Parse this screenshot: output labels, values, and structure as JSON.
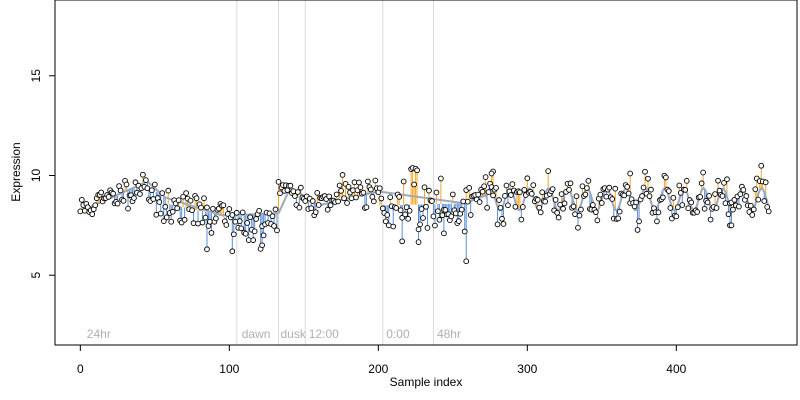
{
  "chart_data": {
    "type": "scatter",
    "title": "",
    "xlabel": "Sample index",
    "ylabel": "Expression",
    "xlim": [
      -17,
      481
    ],
    "ylim": [
      1.5,
      18.8
    ],
    "xticks": [
      0,
      100,
      200,
      300,
      400
    ],
    "yticks": [
      5,
      10,
      15
    ],
    "x_tick_labels": [
      "0",
      "100",
      "200",
      "300",
      "400"
    ],
    "y_tick_labels": [
      "5",
      "10",
      "15"
    ],
    "grid": false,
    "legend": "none",
    "colors": {
      "above_fit": "#f5a623",
      "below_fit": "#5b8fd6",
      "fit_line": "#9aa9bf",
      "point_fill": "#ffffff",
      "point_edge": "#000000",
      "vline": "#d9d9d9",
      "annotation": "#b0b0b0"
    },
    "vlines": [
      105,
      133,
      151,
      203,
      237
    ],
    "annotations": [
      {
        "x": 3,
        "label": "24hr"
      },
      {
        "x": 107,
        "label": "dawn"
      },
      {
        "x": 133,
        "label": "dusk"
      },
      {
        "x": 152,
        "label": "12:00"
      },
      {
        "x": 204,
        "label": "0:00"
      },
      {
        "x": 238,
        "label": "48hr"
      }
    ],
    "fit_segments": [
      {
        "x0": 0,
        "x1": 45,
        "kind": "linear",
        "y0": 8.2,
        "y1": 9.7
      },
      {
        "x0": 45,
        "x1": 57,
        "kind": "linear",
        "y0": 9.5,
        "y1": 8.9
      },
      {
        "x0": 57,
        "x1": 95,
        "kind": "linear",
        "y0": 8.6,
        "y1": 8.0
      },
      {
        "x0": 95,
        "x1": 133,
        "kind": "linear",
        "y0": 7.9,
        "y1": 8.1
      },
      {
        "x0": 133,
        "x1": 141,
        "kind": "linear",
        "y0": 9.2,
        "y1": 9.4
      },
      {
        "x0": 141,
        "x1": 160,
        "kind": "linear",
        "y0": 9.0,
        "y1": 8.5
      },
      {
        "x0": 160,
        "x1": 200,
        "kind": "linear",
        "y0": 8.7,
        "y1": 9.2
      },
      {
        "x0": 200,
        "x1": 258,
        "kind": "linear",
        "y0": 8.5,
        "y1": 8.6
      },
      {
        "x0": 258,
        "x1": 272,
        "kind": "linear",
        "y0": 8.7,
        "y1": 9.0
      },
      {
        "x0": 272,
        "x1": 462,
        "kind": "wave",
        "base": 8.8,
        "amp": 0.55,
        "period": 13
      }
    ],
    "series": [
      {
        "name": "",
        "gen": "noise",
        "x0": 0,
        "x1": 45,
        "y0": 8.3,
        "y1": 9.6,
        "sd": 0.35,
        "seed": 11
      },
      {
        "name": "",
        "gen": "noise",
        "x0": 46,
        "x1": 57,
        "y0": 9.3,
        "y1": 8.2,
        "sd": 0.45,
        "seed": 23
      },
      {
        "name": "",
        "gen": "noise",
        "x0": 58,
        "x1": 95,
        "y0": 8.4,
        "y1": 8.0,
        "sd": 0.45,
        "seed": 37
      },
      {
        "name": "",
        "gen": "noise",
        "x0": 96,
        "x1": 132,
        "y0": 7.6,
        "y1": 7.6,
        "sd": 0.55,
        "seed": 41
      },
      {
        "name": "",
        "gen": "noise",
        "x0": 133,
        "x1": 141,
        "y0": 9.4,
        "y1": 9.4,
        "sd": 0.2,
        "seed": 53
      },
      {
        "name": "",
        "gen": "noise",
        "x0": 142,
        "x1": 160,
        "y0": 8.9,
        "y1": 8.6,
        "sd": 0.35,
        "seed": 61
      },
      {
        "name": "",
        "gen": "noise",
        "x0": 161,
        "x1": 201,
        "y0": 9.0,
        "y1": 9.3,
        "sd": 0.4,
        "seed": 71
      },
      {
        "name": "",
        "gen": "noise",
        "x0": 202,
        "x1": 258,
        "y0": 8.4,
        "y1": 8.3,
        "sd": 0.8,
        "seed": 83
      },
      {
        "name": "",
        "gen": "noise",
        "x0": 259,
        "x1": 272,
        "y0": 8.7,
        "y1": 9.1,
        "sd": 0.4,
        "seed": 97
      },
      {
        "name": "",
        "gen": "wave",
        "x0": 273,
        "x1": 462,
        "sd": 0.45,
        "seed": 101
      }
    ],
    "extra_points": [
      {
        "x": 85,
        "y": 6.3
      },
      {
        "x": 102,
        "y": 6.2
      },
      {
        "x": 122,
        "y": 6.5
      },
      {
        "x": 216,
        "y": 6.7
      },
      {
        "x": 244,
        "y": 7.1
      },
      {
        "x": 259,
        "y": 5.7
      },
      {
        "x": 277,
        "y": 10.2
      },
      {
        "x": 276,
        "y": 10.1
      },
      {
        "x": 369,
        "y": 10.1
      },
      {
        "x": 436,
        "y": 7.5
      },
      {
        "x": 437,
        "y": 7.5
      },
      {
        "x": 227,
        "y": 7.3
      }
    ]
  }
}
